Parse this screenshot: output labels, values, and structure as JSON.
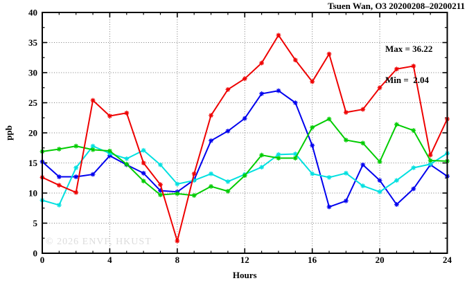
{
  "title": "Tsuen Wan, O3 20200208–20200211",
  "annotation": {
    "max_label": "Max = 36.22",
    "min_label": "Min =  2.04"
  },
  "watermark": "© 2026 ENVF, HKUST",
  "chart_data": {
    "type": "line",
    "title": "Tsuen Wan, O3 20200208–20200211",
    "xlabel": "Hours",
    "ylabel": "ppb",
    "xlim": [
      0,
      24
    ],
    "ylim": [
      0,
      40
    ],
    "x_major_ticks": [
      0,
      4,
      8,
      12,
      16,
      20,
      24
    ],
    "x_minor_step": 1,
    "y_major_ticks": [
      0,
      5,
      10,
      15,
      20,
      25,
      30,
      35,
      40
    ],
    "y_minor_step": 2.5,
    "grid": "dotted",
    "legend_position": "none",
    "marker": "asterisk",
    "x": [
      0,
      1,
      2,
      3,
      4,
      5,
      6,
      7,
      8,
      9,
      10,
      11,
      12,
      13,
      14,
      15,
      16,
      17,
      18,
      19,
      20,
      21,
      22,
      23,
      24
    ],
    "series": [
      {
        "name": "blue",
        "color": "#0000ee",
        "values": [
          15.2,
          12.7,
          12.7,
          13.1,
          16.2,
          14.7,
          13.3,
          10.4,
          10.2,
          12.2,
          18.7,
          20.3,
          22.4,
          26.5,
          27.0,
          25.0,
          17.9,
          7.7,
          8.7,
          14.7,
          12.1,
          8.1,
          10.7,
          14.7,
          12.8
        ]
      },
      {
        "name": "cyan",
        "color": "#00e0e0",
        "values": [
          8.8,
          8.0,
          14.2,
          17.8,
          16.6,
          15.7,
          17.1,
          14.7,
          11.5,
          12.1,
          13.2,
          11.9,
          13.1,
          14.3,
          16.4,
          16.5,
          13.2,
          12.6,
          13.3,
          11.2,
          10.2,
          12.1,
          14.2,
          14.8,
          16.6
        ]
      },
      {
        "name": "green",
        "color": "#00cc00",
        "values": [
          16.9,
          17.3,
          17.8,
          17.2,
          17.0,
          14.8,
          12.0,
          9.7,
          9.9,
          9.6,
          11.1,
          10.3,
          12.9,
          16.3,
          15.8,
          15.8,
          20.9,
          22.3,
          18.8,
          18.3,
          15.2,
          21.4,
          20.4,
          15.4,
          15.3
        ]
      },
      {
        "name": "red",
        "color": "#ee0000",
        "values": [
          12.6,
          11.3,
          10.1,
          25.4,
          22.8,
          23.3,
          15.0,
          11.4,
          2.04,
          13.2,
          22.9,
          27.2,
          29.0,
          31.6,
          36.22,
          32.1,
          28.5,
          33.1,
          23.4,
          23.9,
          27.5,
          30.6,
          31.1,
          16.3,
          22.3
        ]
      }
    ],
    "stats": {
      "max": 36.22,
      "min": 2.04
    }
  }
}
